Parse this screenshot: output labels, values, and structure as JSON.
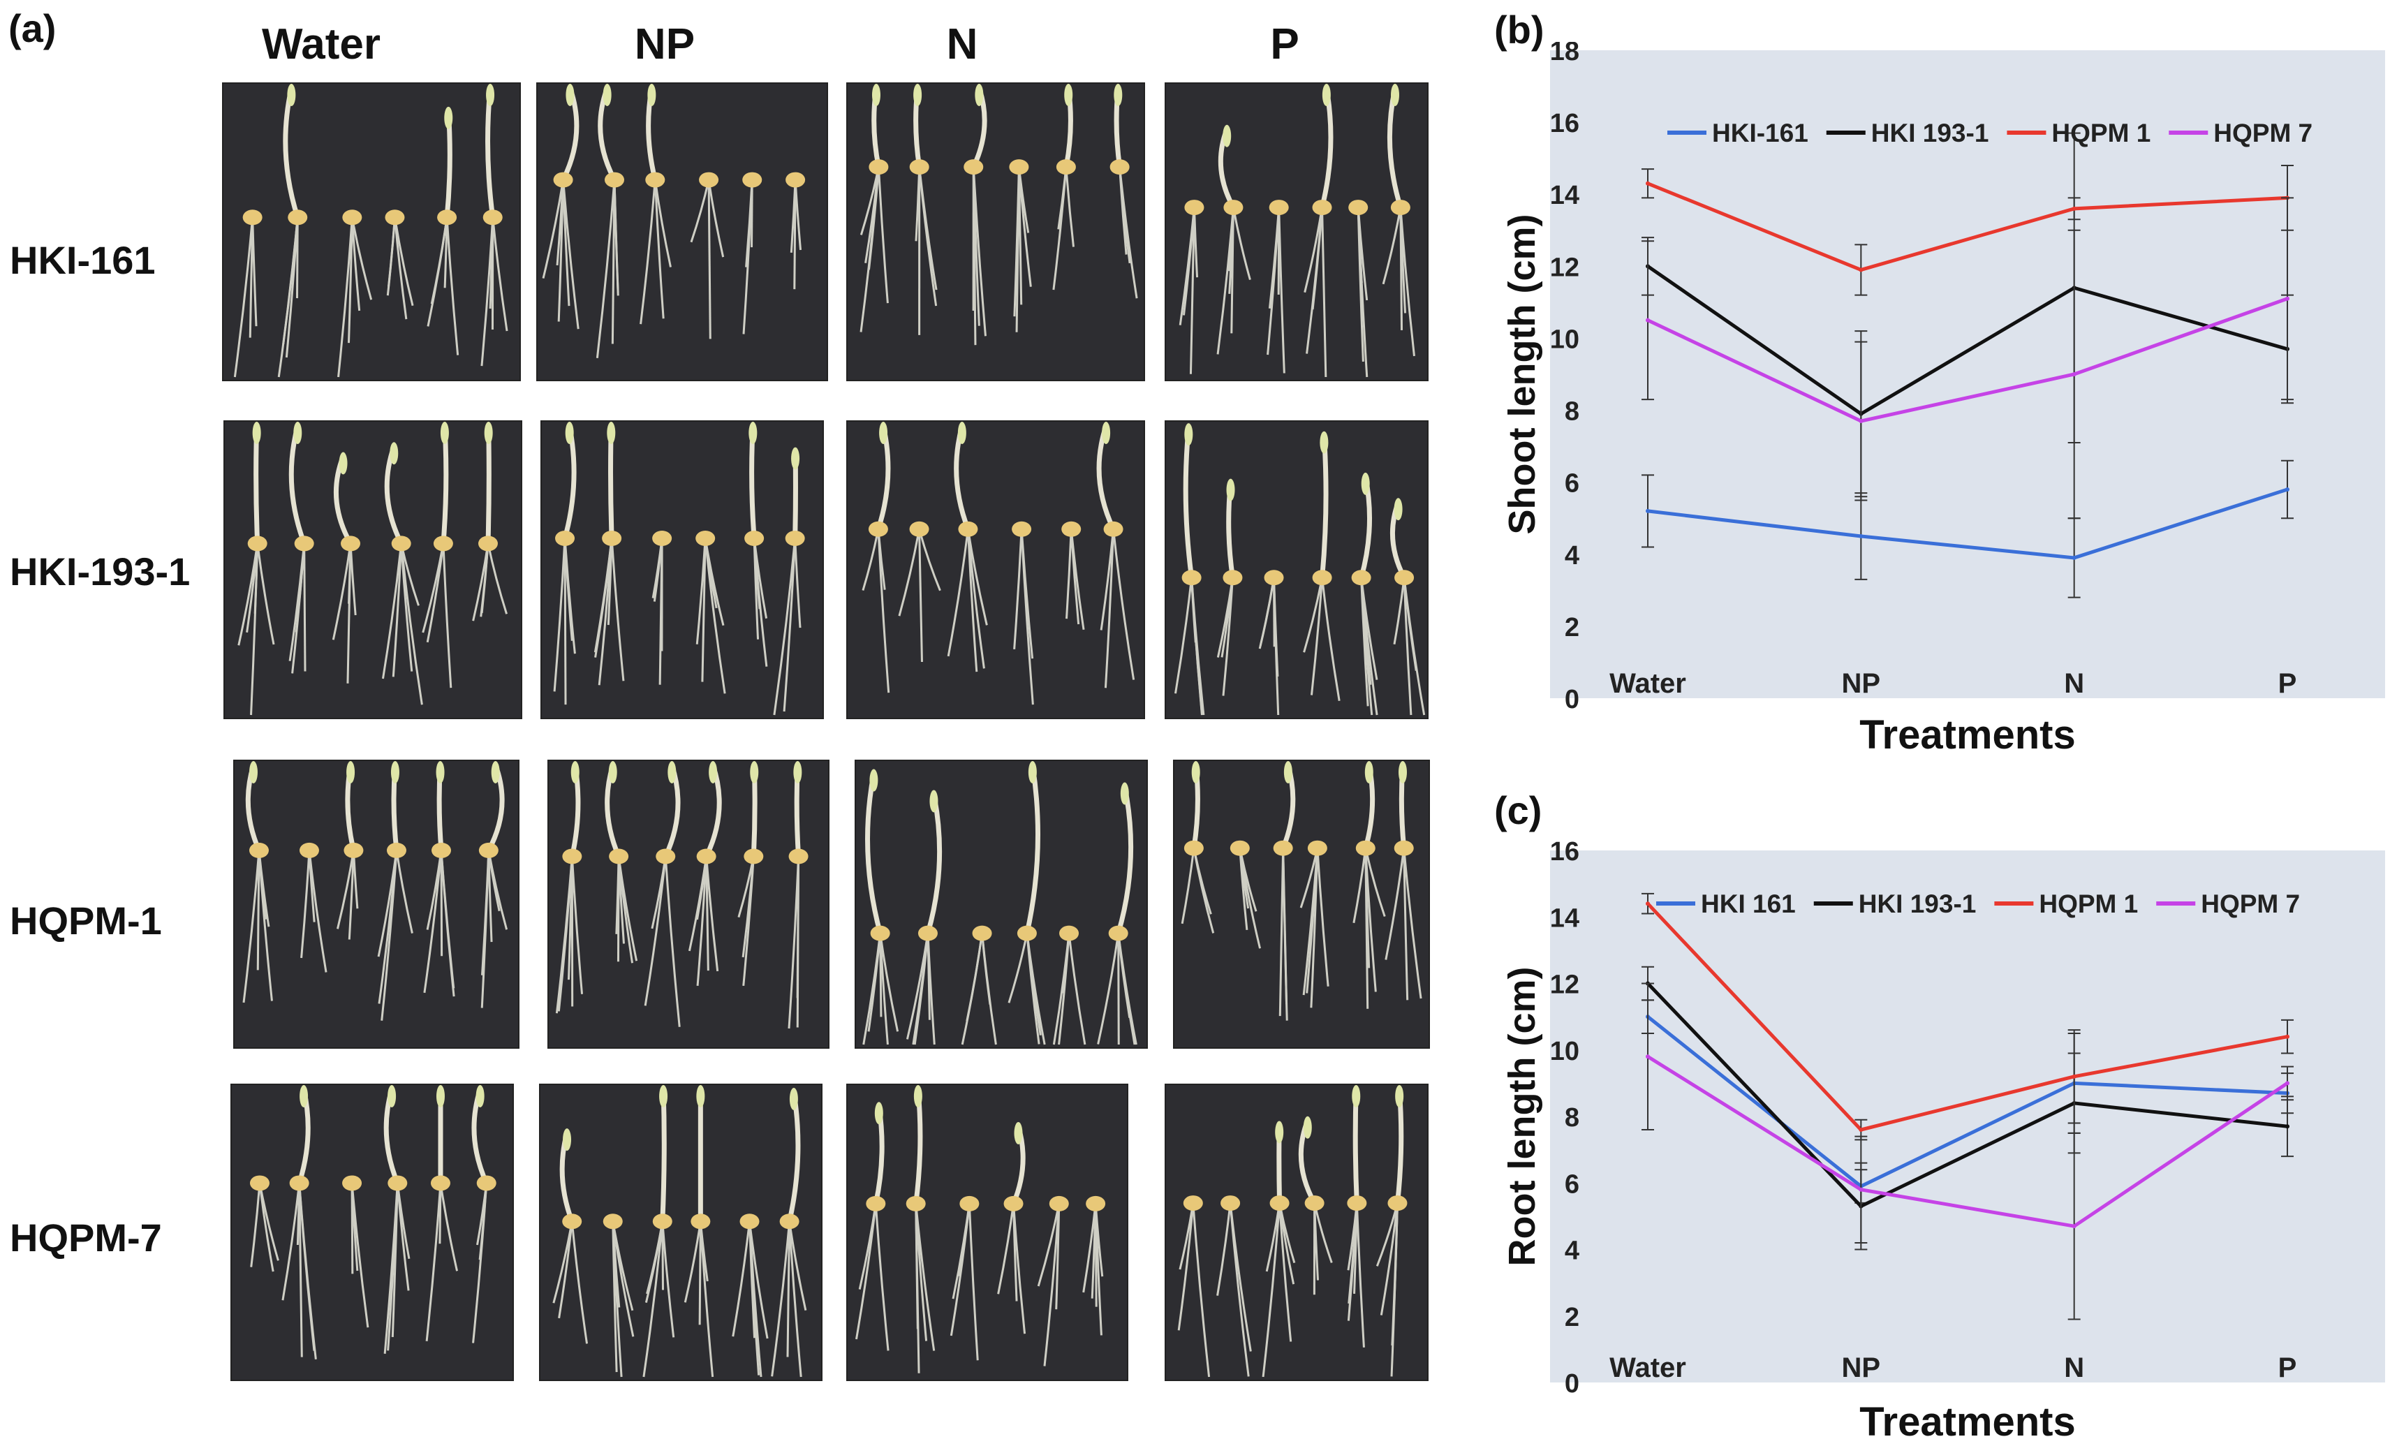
{
  "panels": {
    "a": "(a)",
    "b": "(b)",
    "c": "(c)"
  },
  "photo_grid": {
    "columns": [
      "Water",
      "NP",
      "N",
      "P"
    ],
    "rows": [
      "HKI-161",
      "HKI-193-1",
      "HQPM-1",
      "HQPM-7"
    ]
  },
  "colors": {
    "blue": "#3a6fd8",
    "black": "#111111",
    "red": "#e8382e",
    "purple": "#c543e6",
    "plot_bg": "#dde3ec",
    "photo_bg": "#2d2d31",
    "seedling": "#e6e3d2",
    "seed": "#e8c878"
  },
  "chart_data": [
    {
      "type": "line",
      "panel": "(b)",
      "categories": [
        "Water",
        "NP",
        "N",
        "P"
      ],
      "xlabel": "Treatments",
      "ylabel": "Shoot length (cm)",
      "ylim": [
        0,
        18
      ],
      "yticks": [
        0,
        2,
        4,
        6,
        8,
        10,
        12,
        14,
        16,
        18
      ],
      "legend_position": "top",
      "series": [
        {
          "name": "HKI-161",
          "color": "#3a6fd8",
          "values": [
            5.2,
            4.5,
            3.9,
            5.8
          ],
          "errors": [
            1.0,
            1.2,
            1.1,
            0.8
          ]
        },
        {
          "name": "HKI 193-1",
          "color": "#111111",
          "values": [
            12.0,
            7.9,
            11.4,
            9.7
          ],
          "errors": [
            0.8,
            2.3,
            4.3,
            1.5
          ]
        },
        {
          "name": "HQPM 1",
          "color": "#e8382e",
          "values": [
            14.3,
            11.9,
            13.6,
            13.9
          ],
          "errors": [
            0.4,
            0.7,
            0.3,
            0.9
          ]
        },
        {
          "name": "HQPM 7",
          "color": "#c543e6",
          "values": [
            10.5,
            7.7,
            9.0,
            11.1
          ],
          "errors": [
            2.2,
            2.2,
            4.0,
            2.8
          ]
        }
      ]
    },
    {
      "type": "line",
      "panel": "(c)",
      "categories": [
        "Water",
        "NP",
        "N",
        "P"
      ],
      "xlabel": "Treatments",
      "ylabel": "Root length  (cm)",
      "ylim": [
        0,
        16
      ],
      "yticks": [
        0,
        2,
        4,
        6,
        8,
        10,
        12,
        14,
        16
      ],
      "legend_position": "top",
      "series": [
        {
          "name": "HKI 161",
          "color": "#3a6fd8",
          "values": [
            11.0,
            5.9,
            9.0,
            8.7
          ],
          "errors": [
            0.5,
            0.5,
            1.5,
            0.6
          ]
        },
        {
          "name": "HKI 193-1",
          "color": "#111111",
          "values": [
            12.0,
            5.3,
            8.4,
            7.7
          ],
          "errors": [
            0.5,
            1.3,
            1.5,
            0.9
          ]
        },
        {
          "name": "HQPM 1",
          "color": "#e8382e",
          "values": [
            14.4,
            7.6,
            9.2,
            10.4
          ],
          "errors": [
            0.3,
            0.3,
            1.4,
            0.5
          ]
        },
        {
          "name": "HQPM 7",
          "color": "#c543e6",
          "values": [
            9.8,
            5.8,
            4.7,
            9.0
          ],
          "errors": [
            2.2,
            1.6,
            2.8,
            0.5
          ]
        }
      ]
    }
  ]
}
